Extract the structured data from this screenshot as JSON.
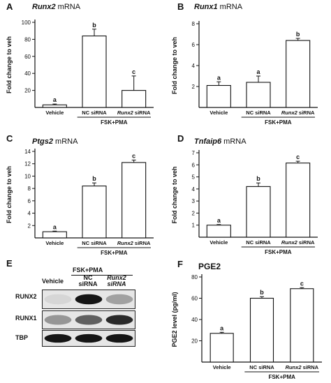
{
  "figure": {
    "footer_text": "",
    "panels": [
      {
        "letter": "A",
        "gene": "Runx2",
        "suffix": " mRNA"
      },
      {
        "letter": "B",
        "gene": "Runx1",
        "suffix": " mRNA"
      },
      {
        "letter": "C",
        "gene": "Ptgs2",
        "suffix": " mRNA"
      },
      {
        "letter": "D",
        "gene": "Tnfaip6",
        "suffix": " mRNA"
      },
      {
        "letter": "E"
      },
      {
        "letter": "F",
        "title": "PGE2"
      }
    ],
    "western": {
      "header_group": "FSK+PMA",
      "lanes": [
        "Vehicle",
        "NC siRNA",
        "Runx2 siRNA"
      ],
      "rows": [
        "RUNX2",
        "RUNX1",
        "TBP"
      ],
      "band_intensity": [
        [
          0.05,
          0.95,
          0.3
        ],
        [
          0.35,
          0.6,
          0.85
        ],
        [
          0.95,
          0.95,
          0.95
        ]
      ]
    }
  },
  "chart_data": [
    {
      "type": "bar",
      "title": "Runx2 mRNA",
      "ylabel": "Fold change to veh",
      "categories": [
        "Vehicle",
        "NC siRNA",
        "Runx2 siRNA"
      ],
      "group_label": "FSK+PMA",
      "values": [
        3,
        84,
        20
      ],
      "errors": [
        1,
        8,
        17
      ],
      "letters": [
        "a",
        "b",
        "c"
      ],
      "ylim": [
        0,
        100
      ],
      "yticks": [
        20,
        40,
        60,
        80,
        100
      ]
    },
    {
      "type": "bar",
      "title": "Runx1 mRNA",
      "ylabel": "Fold change to veh",
      "categories": [
        "Vehicle",
        "NC siRNA",
        "Runx2 siRNA"
      ],
      "group_label": "FSK+PMA",
      "values": [
        2.1,
        2.4,
        6.4
      ],
      "errors": [
        0.35,
        0.6,
        0.2
      ],
      "letters": [
        "a",
        "a",
        "b"
      ],
      "ylim": [
        0,
        8
      ],
      "yticks": [
        2,
        4,
        6,
        8
      ]
    },
    {
      "type": "bar",
      "title": "Ptgs2 mRNA",
      "ylabel": "Fold change to veh",
      "categories": [
        "Vehicle",
        "NC siRNA",
        "Runx2 siRNA"
      ],
      "group_label": "FSK+PMA",
      "values": [
        1.0,
        8.4,
        12.2
      ],
      "errors": [
        0.1,
        0.5,
        0.4
      ],
      "letters": [
        "a",
        "b",
        "c"
      ],
      "ylim": [
        0,
        14
      ],
      "yticks": [
        2,
        4,
        6,
        8,
        10,
        12,
        14
      ]
    },
    {
      "type": "bar",
      "title": "Tnfaip6 mRNA",
      "ylabel": "Fold change to veh",
      "categories": [
        "Vehicle",
        "NC siRNA",
        "Runx2 siRNA"
      ],
      "group_label": "FSK+PMA",
      "values": [
        1.0,
        4.2,
        6.15
      ],
      "errors": [
        0.05,
        0.3,
        0.15
      ],
      "letters": [
        "a",
        "b",
        "c"
      ],
      "ylim": [
        0,
        7
      ],
      "yticks": [
        1,
        2,
        3,
        4,
        5,
        6,
        7
      ]
    },
    {
      "type": "bar",
      "title": "PGE2",
      "ylabel": "PGE2 level (pg/ml)",
      "categories": [
        "Vehicle",
        "NC siRNA",
        "Runx2 siRNA"
      ],
      "group_label": "FSK+PMA",
      "values": [
        27,
        60,
        69
      ],
      "errors": [
        1,
        1.5,
        1
      ],
      "letters": [
        "a",
        "b",
        "c"
      ],
      "ylim": [
        0,
        80
      ],
      "yticks": [
        20,
        40,
        60,
        80
      ]
    }
  ]
}
